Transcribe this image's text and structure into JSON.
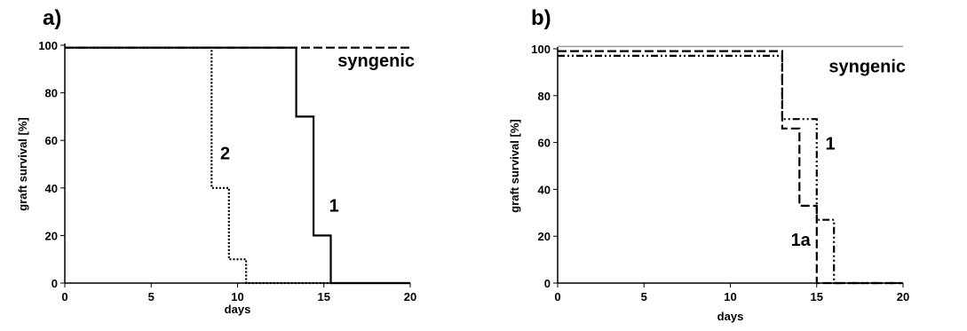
{
  "chart_data": [
    {
      "type": "line",
      "panel_label": "a)",
      "xlabel": "days",
      "ylabel": "graft survival [%]",
      "xlim": [
        0,
        20
      ],
      "ylim": [
        0,
        100
      ],
      "x_ticks": [
        "0",
        "5",
        "10",
        "15",
        "20"
      ],
      "y_ticks": [
        "0",
        "20",
        "40",
        "60",
        "80",
        "100"
      ],
      "grid": false,
      "series": [
        {
          "name": "syngenic",
          "style": "dashed",
          "color": "#000000",
          "x": [
            0,
            20
          ],
          "y": [
            99,
            99
          ]
        },
        {
          "name": "2",
          "style": "dotted",
          "color": "#000000",
          "x": [
            0,
            8.5,
            8.5,
            9.5,
            9.5,
            10.5,
            10.5,
            20
          ],
          "y": [
            99,
            99,
            40,
            40,
            10,
            10,
            0,
            0
          ]
        },
        {
          "name": "1",
          "style": "solid",
          "color": "#000000",
          "x": [
            0,
            13.4,
            13.4,
            14.4,
            14.4,
            15.4,
            15.4,
            20
          ],
          "y": [
            99,
            99,
            70,
            70,
            20,
            20,
            0,
            0
          ]
        }
      ],
      "annotations": [
        {
          "text": "syngenic",
          "x": 15.8,
          "y": 91
        },
        {
          "text": "2",
          "x": 9.0,
          "y": 52
        },
        {
          "text": "1",
          "x": 15.3,
          "y": 30
        }
      ]
    },
    {
      "type": "line",
      "panel_label": "b)",
      "xlabel": "days",
      "ylabel": "graft survival [%]",
      "xlim": [
        0,
        20
      ],
      "ylim": [
        0,
        100
      ],
      "x_ticks": [
        "0",
        "5",
        "10",
        "15",
        "20"
      ],
      "y_ticks": [
        "0",
        "20",
        "40",
        "60",
        "80",
        "100"
      ],
      "grid": false,
      "series": [
        {
          "name": "syngenic",
          "style": "solid",
          "color": "#999999",
          "x": [
            0,
            20
          ],
          "y": [
            101,
            101
          ]
        },
        {
          "name": "1a",
          "style": "dashed",
          "color": "#000000",
          "x": [
            0,
            13,
            13,
            14,
            14,
            15,
            15,
            20
          ],
          "y": [
            99,
            99,
            66,
            66,
            33,
            33,
            0,
            0
          ]
        },
        {
          "name": "1",
          "style": "dashdotdot",
          "color": "#000000",
          "x": [
            0,
            13,
            13,
            15,
            15,
            16,
            16,
            20
          ],
          "y": [
            97,
            97,
            70,
            70,
            27,
            27,
            0,
            0
          ]
        }
      ],
      "annotations": [
        {
          "text": "syngenic",
          "x": 15.7,
          "y": 90
        },
        {
          "text": "1",
          "x": 15.5,
          "y": 57
        },
        {
          "text": "1a",
          "x": 13.5,
          "y": 16
        }
      ]
    }
  ]
}
